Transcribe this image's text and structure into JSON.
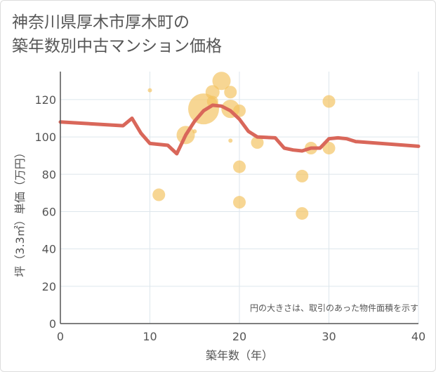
{
  "title": "神奈川県厚木市厚木町の\n築年数別中古マンション価格",
  "chart_data": {
    "type": "scatter",
    "title": "神奈川県厚木市厚木町の築年数別中古マンション価格",
    "xlabel": "築年数（年）",
    "ylabel": "坪（3.3㎡）単価（万円）",
    "xlim": [
      0,
      40
    ],
    "ylim": [
      0,
      135
    ],
    "x_ticks": [
      0,
      10,
      20,
      30,
      40
    ],
    "y_ticks": [
      0,
      20,
      40,
      60,
      80,
      100,
      120
    ],
    "grid": true,
    "annotation": "円の大きさは、取引のあった物件面積を示す",
    "colors": {
      "bubble": "#f3c260",
      "line": "#d9675a",
      "grid": "#dde6ec",
      "axis": "#555555"
    },
    "series": [
      {
        "type": "scatter",
        "points": [
          {
            "x": 10,
            "y": 125,
            "size": 3
          },
          {
            "x": 11,
            "y": 69,
            "size": 9
          },
          {
            "x": 14,
            "y": 101,
            "size": 13
          },
          {
            "x": 15,
            "y": 103,
            "size": 3
          },
          {
            "x": 16,
            "y": 115,
            "size": 22
          },
          {
            "x": 17,
            "y": 124,
            "size": 10
          },
          {
            "x": 17,
            "y": 119,
            "size": 8
          },
          {
            "x": 18,
            "y": 130,
            "size": 13
          },
          {
            "x": 19,
            "y": 124,
            "size": 9
          },
          {
            "x": 19,
            "y": 115,
            "size": 13
          },
          {
            "x": 19,
            "y": 98,
            "size": 3
          },
          {
            "x": 20,
            "y": 114,
            "size": 9
          },
          {
            "x": 20,
            "y": 84,
            "size": 9
          },
          {
            "x": 20,
            "y": 65,
            "size": 9
          },
          {
            "x": 22,
            "y": 97,
            "size": 9
          },
          {
            "x": 27,
            "y": 79,
            "size": 9
          },
          {
            "x": 27,
            "y": 59,
            "size": 9
          },
          {
            "x": 28,
            "y": 94,
            "size": 9
          },
          {
            "x": 30,
            "y": 119,
            "size": 9
          },
          {
            "x": 30,
            "y": 94,
            "size": 9
          }
        ]
      },
      {
        "type": "line",
        "points": [
          [
            0,
            108
          ],
          [
            7,
            106
          ],
          [
            8,
            110
          ],
          [
            9,
            102
          ],
          [
            10,
            96.5
          ],
          [
            12,
            95.5
          ],
          [
            13,
            91
          ],
          [
            14,
            101
          ],
          [
            15,
            108.5
          ],
          [
            16,
            114
          ],
          [
            17,
            117
          ],
          [
            18,
            116.5
          ],
          [
            19,
            114
          ],
          [
            20,
            109.5
          ],
          [
            21,
            103
          ],
          [
            22,
            100
          ],
          [
            24,
            99.5
          ],
          [
            25,
            94
          ],
          [
            26,
            93
          ],
          [
            27,
            92.5
          ],
          [
            28,
            94
          ],
          [
            29,
            94
          ],
          [
            30,
            99
          ],
          [
            31,
            99.5
          ],
          [
            32,
            99
          ],
          [
            33,
            97.5
          ],
          [
            40,
            95
          ]
        ]
      }
    ]
  }
}
